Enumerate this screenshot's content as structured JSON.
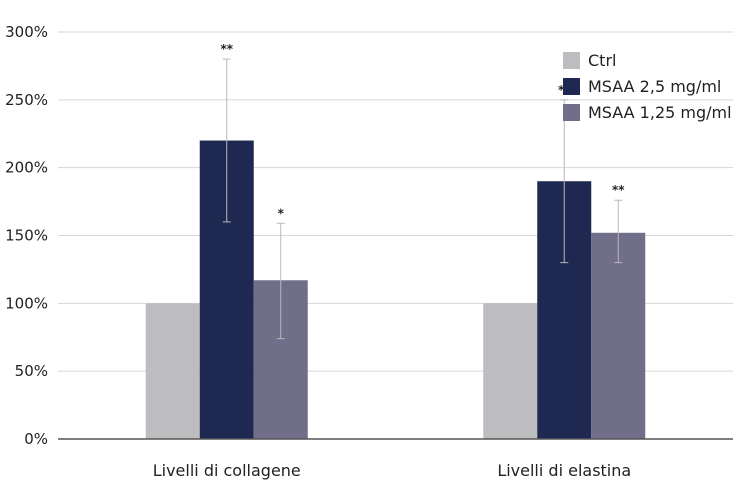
{
  "chart_data": {
    "type": "bar",
    "categories": [
      "Livelli di collagene",
      "Livelli di elastina"
    ],
    "series": [
      {
        "name": "Ctrl",
        "color": "#bdbcbf",
        "values": [
          100,
          100
        ],
        "error_low": [
          null,
          null
        ],
        "error_high": [
          null,
          null
        ],
        "significance": [
          "",
          ""
        ]
      },
      {
        "name": "MSAA 2,5 mg/ml",
        "color": "#1e2850",
        "values": [
          220,
          190
        ],
        "error_low": [
          160,
          130
        ],
        "error_high": [
          280,
          250
        ],
        "significance": [
          "**",
          "**"
        ]
      },
      {
        "name": "MSAA 1,25 mg/ml",
        "color": "#706e88",
        "values": [
          117,
          152
        ],
        "error_low": [
          74,
          130
        ],
        "error_high": [
          159,
          176
        ],
        "significance": [
          "*",
          "**"
        ]
      }
    ],
    "y_ticks": [
      0,
      50,
      100,
      150,
      200,
      250,
      300
    ],
    "y_tick_labels": [
      "0%",
      "50%",
      "100%",
      "150%",
      "200%",
      "250%",
      "300%"
    ],
    "ylim": [
      0,
      300
    ],
    "grid": true,
    "legend_position": "top-right",
    "title": "",
    "xlabel": "",
    "ylabel": ""
  }
}
